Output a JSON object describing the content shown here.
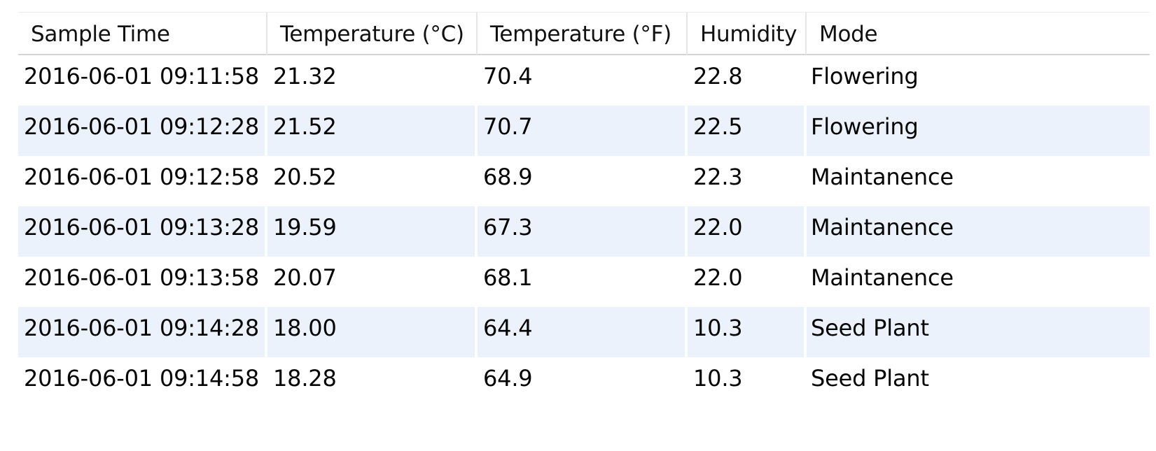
{
  "table": {
    "columns": [
      "Sample Time",
      "Temperature (°C)",
      "Temperature (°F)",
      "Humidity",
      "Mode"
    ],
    "rows": [
      [
        "2016-06-01 09:11:58",
        "21.32",
        "70.4",
        "22.8",
        "Flowering"
      ],
      [
        "2016-06-01 09:12:28",
        "21.52",
        "70.7",
        "22.5",
        "Flowering"
      ],
      [
        "2016-06-01 09:12:58",
        "20.52",
        "68.9",
        "22.3",
        "Maintanence"
      ],
      [
        "2016-06-01 09:13:28",
        "19.59",
        "67.3",
        "22.0",
        "Maintanence"
      ],
      [
        "2016-06-01 09:13:58",
        "20.07",
        "68.1",
        "22.0",
        "Maintanence"
      ],
      [
        "2016-06-01 09:14:28",
        "18.00",
        "64.4",
        "10.3",
        "Seed Plant"
      ],
      [
        "2016-06-01 09:14:58",
        "18.28",
        "64.9",
        "10.3",
        "Seed Plant"
      ]
    ]
  },
  "colors": {
    "alt_row_background": "#ecf2fb",
    "header_border": "#d4d4d4"
  }
}
